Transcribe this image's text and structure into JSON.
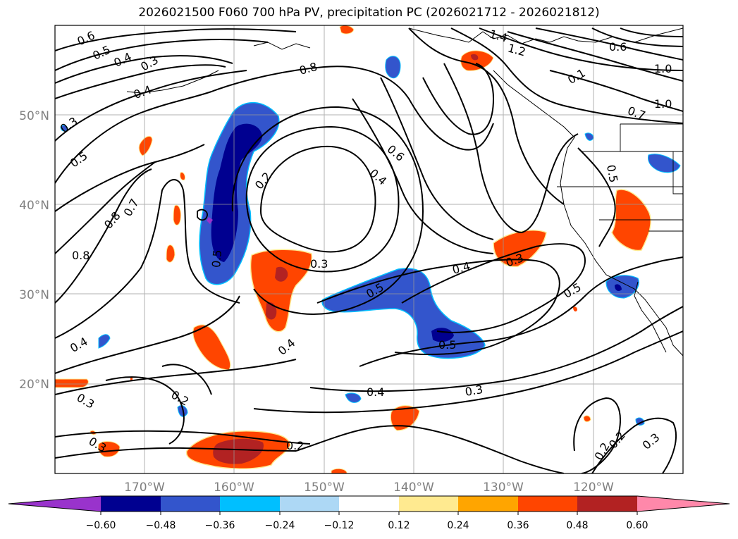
{
  "title": "2026021500 F060 700 hPa PV, precipitation PC (2026021712 - 2026021812)",
  "map": {
    "lat_labels": [
      "50°N",
      "40°N",
      "30°N",
      "20°N"
    ],
    "lon_labels": [
      "170°W",
      "160°W",
      "150°W",
      "140°W",
      "130°W",
      "120°W"
    ],
    "gridline_color": "#999999",
    "axis_label_color": "#808080"
  },
  "colorbar": {
    "colors": [
      "#9933cc",
      "#000090",
      "#3355cc",
      "#00bfff",
      "#add8f5",
      "#ffffff",
      "#ffea90",
      "#ffa500",
      "#ff4500",
      "#b22222",
      "#ff88aa"
    ],
    "tick_labels": [
      "−0.60",
      "−0.48",
      "−0.36",
      "−0.24",
      "−0.12",
      "0.12",
      "0.24",
      "0.36",
      "0.48",
      "0.60"
    ]
  },
  "contour_labels": [
    "0.6",
    "0.5",
    "0.4",
    "0.3",
    "0.4",
    "0.8",
    "1.4",
    "1.2",
    "0.6",
    "1.0",
    "1.0",
    "0.7",
    "0.3",
    "0.5",
    "0.7",
    "0.8",
    "0.2",
    "0.6",
    "0.4",
    "0.8",
    "0.5",
    "0.3",
    "0.4",
    "0.3",
    "0.5",
    "0.5",
    "0.5",
    "0.4",
    "0.4",
    "0.4",
    "0.3",
    "0.3",
    "0.2",
    "0.2",
    "0.2",
    "0.2",
    "0.3",
    "0.3",
    "0.5",
    "0.1"
  ]
}
